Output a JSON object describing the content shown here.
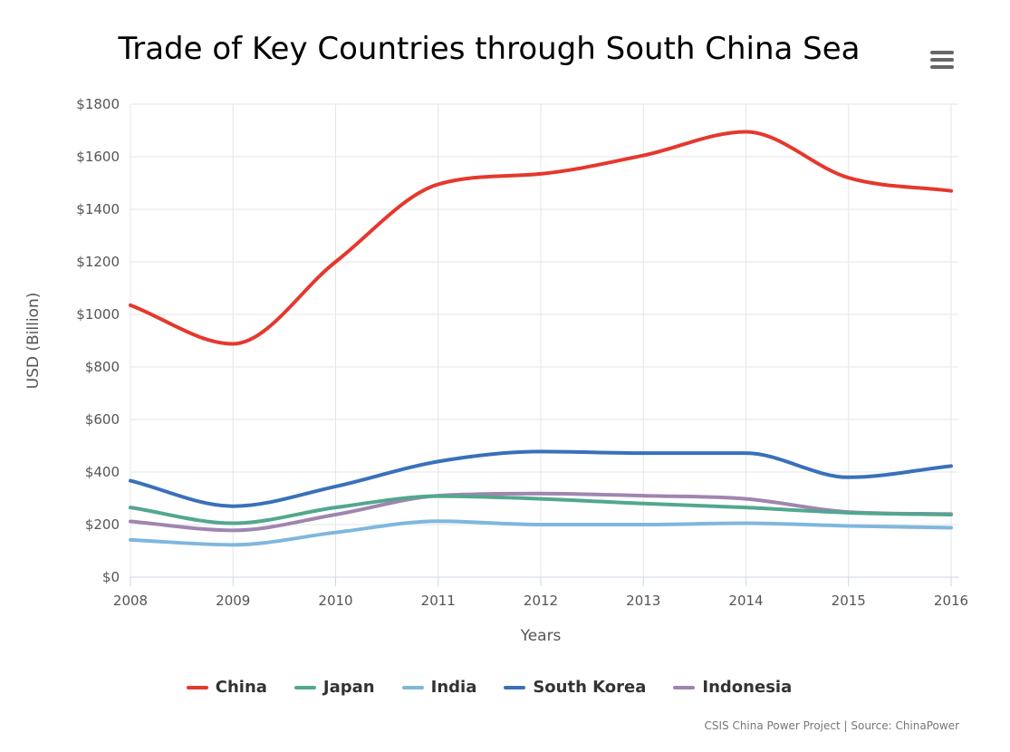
{
  "chart_data": {
    "type": "line",
    "title": "Trade of Key Countries through South China Sea",
    "xlabel": "Years",
    "ylabel": "USD (Billion)",
    "x": [
      "2008",
      "2009",
      "2010",
      "2011",
      "2012",
      "2013",
      "2014",
      "2015",
      "2016"
    ],
    "ylim": [
      0,
      1800
    ],
    "yticks": [
      0,
      200,
      400,
      600,
      800,
      1000,
      1200,
      1400,
      1600,
      1800
    ],
    "ytick_labels": [
      "$0",
      "$200",
      "$400",
      "$600",
      "$800",
      "$1000",
      "$1200",
      "$1400",
      "$1600",
      "$1800"
    ],
    "grid": true,
    "legend_position": "bottom",
    "series": [
      {
        "name": "China",
        "color": "#e5382d",
        "values": [
          1035,
          888,
          1200,
          1495,
          1535,
          1605,
          1695,
          1520,
          1470
        ]
      },
      {
        "name": "Japan",
        "color": "#52a78f",
        "values": [
          265,
          205,
          265,
          308,
          298,
          280,
          265,
          245,
          238
        ]
      },
      {
        "name": "India",
        "color": "#7fb7dd",
        "values": [
          142,
          123,
          170,
          213,
          200,
          200,
          205,
          195,
          188
        ]
      },
      {
        "name": "South Korea",
        "color": "#3a70b9",
        "values": [
          367,
          270,
          345,
          440,
          478,
          472,
          472,
          380,
          423
        ]
      },
      {
        "name": "Indonesia",
        "color": "#a085b0",
        "values": [
          212,
          178,
          238,
          310,
          318,
          310,
          298,
          248,
          240
        ]
      }
    ]
  },
  "credits": "CSIS China Power Project | Source: ChinaPower",
  "icons": {
    "menu": "hamburger-menu-icon"
  }
}
